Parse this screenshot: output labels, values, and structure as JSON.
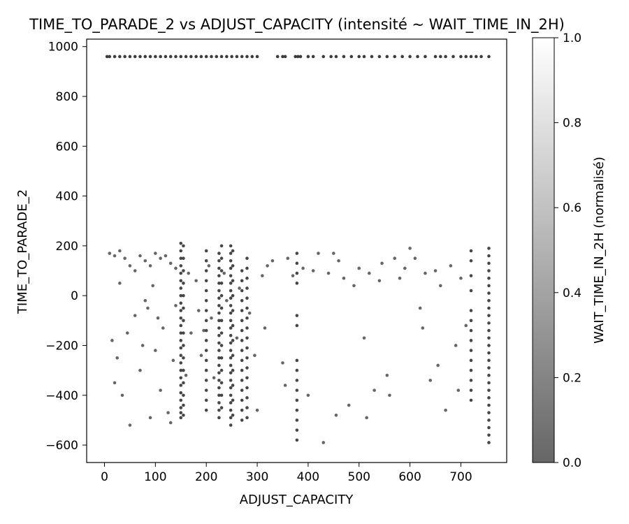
{
  "chart_data": {
    "type": "scatter",
    "title": "TIME_TO_PARADE_2 vs ADJUST_CAPACITY (intensité ~ WAIT_TIME_IN_2H)",
    "xlabel": "ADJUST_CAPACITY",
    "ylabel": "TIME_TO_PARADE_2",
    "xlim": [
      -35,
      790
    ],
    "ylim": [
      -670,
      1030
    ],
    "xticks": [
      0,
      100,
      200,
      300,
      400,
      500,
      600,
      700
    ],
    "yticks": [
      -600,
      -400,
      -200,
      0,
      200,
      400,
      600,
      800,
      1000
    ],
    "grid": false,
    "colorbar": {
      "label": "WAIT_TIME_IN_2H (normalisé)",
      "range": [
        0.0,
        1.0
      ],
      "ticks": [
        "0.0",
        "0.2",
        "0.4",
        "0.6",
        "0.8",
        "1.0"
      ],
      "colors": [
        "#666666",
        "#ffffff"
      ]
    },
    "marker_color": "#333333",
    "band_y": 960,
    "band_x": [
      5,
      10,
      20,
      30,
      40,
      50,
      60,
      70,
      80,
      90,
      100,
      110,
      120,
      130,
      140,
      150,
      160,
      170,
      180,
      190,
      200,
      210,
      220,
      230,
      240,
      250,
      260,
      270,
      280,
      290,
      300,
      340,
      350,
      355,
      375,
      380,
      385,
      400,
      410,
      430,
      445,
      455,
      470,
      485,
      500,
      510,
      525,
      540,
      555,
      570,
      585,
      600,
      615,
      630,
      650,
      660,
      670,
      685,
      700,
      710,
      720,
      730,
      740,
      755
    ],
    "columns": [
      {
        "x": 150,
        "y": [
          -490,
          -470,
          -450,
          -420,
          -390,
          -360,
          -330,
          -300,
          -270,
          -240,
          -210,
          -180,
          -150,
          -120,
          -90,
          -60,
          -30,
          0,
          30,
          60,
          90,
          120,
          150,
          180,
          210
        ]
      },
      {
        "x": 155,
        "y": [
          -480,
          -440,
          -400,
          -350,
          -300,
          -250,
          -200,
          -150,
          -100,
          -50,
          0,
          50,
          100,
          150,
          200
        ]
      },
      {
        "x": 200,
        "y": [
          -460,
          -420,
          -380,
          -340,
          -300,
          -260,
          -220,
          -180,
          -140,
          -100,
          -60,
          -20,
          20,
          60,
          100,
          140,
          180
        ]
      },
      {
        "x": 225,
        "y": [
          -490,
          -460,
          -430,
          -400,
          -370,
          -340,
          -310,
          -280,
          -250,
          -220,
          -190,
          -160,
          -130,
          -100,
          -70,
          -40,
          -10,
          20,
          50,
          80,
          110,
          140,
          170
        ]
      },
      {
        "x": 230,
        "y": [
          -450,
          -400,
          -350,
          -300,
          -250,
          -200,
          -150,
          -100,
          -50,
          0,
          50,
          100,
          150,
          200
        ]
      },
      {
        "x": 248,
        "y": [
          -520,
          -490,
          -460,
          -430,
          -400,
          -370,
          -340,
          -310,
          -280,
          -250,
          -220,
          -190,
          -160,
          -130,
          -100,
          -70,
          -40,
          -10,
          20,
          50,
          80,
          110,
          140,
          170,
          200
        ]
      },
      {
        "x": 252,
        "y": [
          -480,
          -420,
          -360,
          -300,
          -240,
          -180,
          -120,
          -60,
          0,
          60,
          120,
          180
        ]
      },
      {
        "x": 270,
        "y": [
          -500,
          -460,
          -420,
          -380,
          -340,
          -300,
          -260,
          -220,
          -180,
          -140,
          -100,
          -60,
          -20,
          20,
          60,
          100
        ]
      },
      {
        "x": 280,
        "y": [
          -490,
          -450,
          -410,
          -370,
          -330,
          -290,
          -250,
          -210,
          -170,
          -130,
          -90,
          -50,
          -10,
          30,
          70,
          110,
          150
        ]
      },
      {
        "x": 378,
        "y": [
          -580,
          -540,
          -500,
          -460,
          -420,
          -380,
          -340,
          -300,
          -260,
          -120,
          -80,
          50,
          90,
          130,
          170
        ]
      },
      {
        "x": 720,
        "y": [
          -420,
          -380,
          -340,
          -300,
          -260,
          -220,
          -180,
          -140,
          -100,
          -60,
          20,
          80,
          140,
          180
        ]
      },
      {
        "x": 755,
        "y": [
          -590,
          -560,
          -530,
          -500,
          -470,
          -440,
          -410,
          -380,
          -350,
          -320,
          -290,
          -260,
          -230,
          -200,
          -170,
          -140,
          -110,
          -80,
          -50,
          -20,
          10,
          40,
          70,
          100,
          130,
          160,
          190
        ]
      }
    ],
    "scatter_points": [
      [
        10,
        170
      ],
      [
        20,
        160
      ],
      [
        30,
        180
      ],
      [
        40,
        150
      ],
      [
        50,
        120
      ],
      [
        60,
        100
      ],
      [
        70,
        160
      ],
      [
        80,
        140
      ],
      [
        90,
        120
      ],
      [
        100,
        170
      ],
      [
        110,
        150
      ],
      [
        120,
        160
      ],
      [
        130,
        130
      ],
      [
        140,
        110
      ],
      [
        15,
        -180
      ],
      [
        20,
        -350
      ],
      [
        25,
        -250
      ],
      [
        35,
        -400
      ],
      [
        45,
        -150
      ],
      [
        50,
        -520
      ],
      [
        60,
        -80
      ],
      [
        70,
        -300
      ],
      [
        75,
        -200
      ],
      [
        85,
        -50
      ],
      [
        90,
        -490
      ],
      [
        100,
        -220
      ],
      [
        110,
        -380
      ],
      [
        115,
        -130
      ],
      [
        125,
        -470
      ],
      [
        130,
        -510
      ],
      [
        135,
        -260
      ],
      [
        140,
        -40
      ],
      [
        160,
        -320
      ],
      [
        170,
        -150
      ],
      [
        180,
        60
      ],
      [
        190,
        -240
      ],
      [
        210,
        -90
      ],
      [
        215,
        -330
      ],
      [
        240,
        -20
      ],
      [
        260,
        -170
      ],
      [
        295,
        -240
      ],
      [
        300,
        -460
      ],
      [
        310,
        80
      ],
      [
        320,
        120
      ],
      [
        330,
        140
      ],
      [
        350,
        -270
      ],
      [
        355,
        -360
      ],
      [
        360,
        150
      ],
      [
        370,
        80
      ],
      [
        390,
        110
      ],
      [
        400,
        -400
      ],
      [
        410,
        100
      ],
      [
        420,
        170
      ],
      [
        430,
        -590
      ],
      [
        440,
        90
      ],
      [
        450,
        170
      ],
      [
        455,
        -480
      ],
      [
        460,
        140
      ],
      [
        470,
        70
      ],
      [
        480,
        -440
      ],
      [
        490,
        40
      ],
      [
        500,
        110
      ],
      [
        510,
        -170
      ],
      [
        515,
        -490
      ],
      [
        520,
        90
      ],
      [
        530,
        -380
      ],
      [
        540,
        60
      ],
      [
        545,
        130
      ],
      [
        555,
        -320
      ],
      [
        560,
        -400
      ],
      [
        570,
        150
      ],
      [
        580,
        70
      ],
      [
        590,
        110
      ],
      [
        600,
        190
      ],
      [
        610,
        150
      ],
      [
        620,
        -50
      ],
      [
        625,
        -130
      ],
      [
        630,
        90
      ],
      [
        640,
        -340
      ],
      [
        650,
        100
      ],
      [
        655,
        -280
      ],
      [
        660,
        40
      ],
      [
        670,
        -460
      ],
      [
        680,
        120
      ],
      [
        690,
        -200
      ],
      [
        695,
        -380
      ],
      [
        700,
        70
      ],
      [
        710,
        -120
      ],
      [
        30,
        50
      ],
      [
        80,
        -20
      ],
      [
        95,
        40
      ],
      [
        105,
        -90
      ],
      [
        165,
        90
      ],
      [
        185,
        -60
      ],
      [
        195,
        -140
      ],
      [
        205,
        120
      ],
      [
        235,
        90
      ],
      [
        265,
        30
      ],
      [
        285,
        -70
      ],
      [
        315,
        -130
      ]
    ]
  }
}
